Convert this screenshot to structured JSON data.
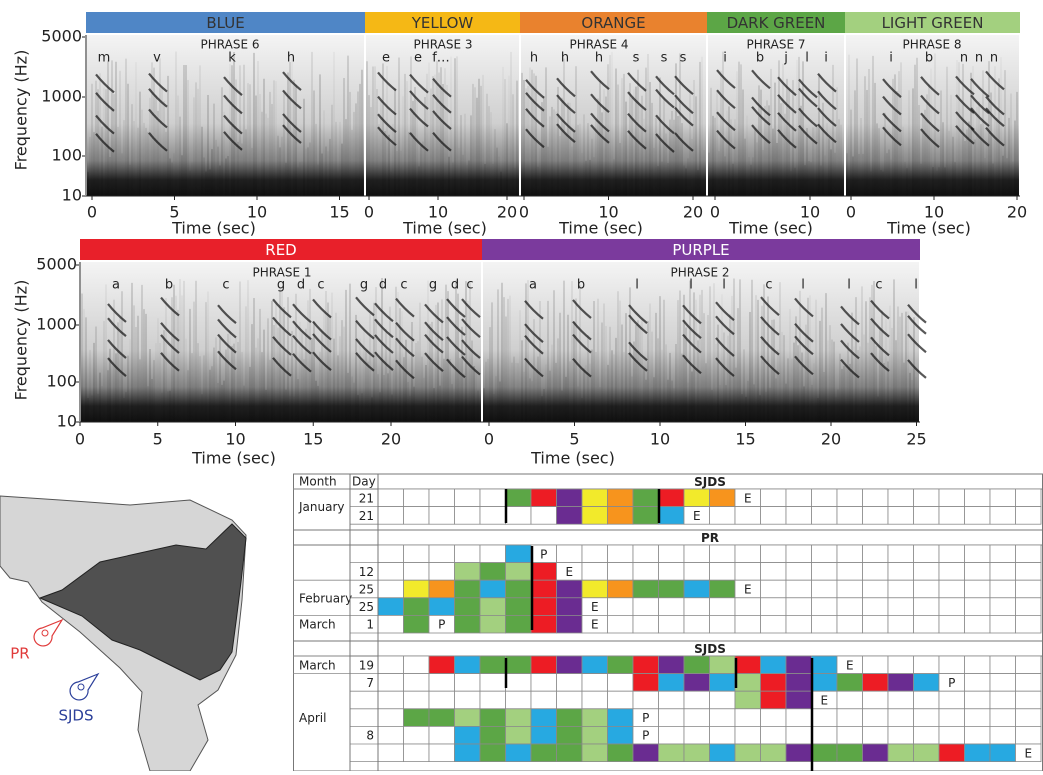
{
  "spectrograms": [
    {
      "ylabel": "Frequency (Hz)",
      "yticks": [
        5000,
        1000,
        100,
        10
      ],
      "panels": [
        {
          "header": "BLUE",
          "color": "#4f86c6",
          "text_color": "#333333",
          "phrase": "PHRASE 6",
          "letters": [
            "m",
            "v",
            "k",
            "h"
          ],
          "xticks": [
            0,
            5,
            10,
            15
          ],
          "xlabel": "Time (sec)"
        },
        {
          "header": "YELLOW",
          "color": "#f5b815",
          "text_color": "#333333",
          "phrase": "PHRASE 3",
          "letters": [
            "e",
            "e",
            "f…"
          ],
          "xticks": [
            0,
            10,
            20
          ],
          "xlabel": "Time (sec)"
        },
        {
          "header": "ORANGE",
          "color": "#e9822e",
          "text_color": "#333333",
          "phrase": "PHRASE 4",
          "letters": [
            "h",
            "h",
            "h",
            "s",
            "s",
            "s"
          ],
          "xticks": [
            0,
            10,
            20
          ],
          "xlabel": "Time (sec)"
        },
        {
          "header": "DARK GREEN",
          "color": "#5ca646",
          "text_color": "#333333",
          "phrase": "PHRASE 7",
          "letters": [
            "i",
            "b",
            "j",
            "l",
            "i"
          ],
          "xticks": [
            0,
            10
          ],
          "xlabel": "Time (sec)"
        },
        {
          "header": "LIGHT GREEN",
          "color": "#a3d07f",
          "text_color": "#333333",
          "phrase": "PHRASE 8",
          "letters": [
            "i",
            "b",
            "n",
            "n",
            "n"
          ],
          "xticks": [
            0,
            10,
            20
          ],
          "xlabel": "Time (sec)"
        }
      ]
    },
    {
      "ylabel": "Frequency (Hz)",
      "yticks": [
        5000,
        1000,
        100,
        10
      ],
      "panels": [
        {
          "header": "RED",
          "color": "#e8202a",
          "text_color": "#ffffff",
          "phrase": "PHRASE 1",
          "letters": [
            "a",
            "b",
            "c",
            "g",
            "d",
            "c",
            "g",
            "d",
            "c",
            "g",
            "d",
            "c"
          ],
          "xticks": [
            0,
            5,
            10,
            15,
            20
          ],
          "xlabel": "Time (sec)"
        },
        {
          "header": "PURPLE",
          "color": "#7b3a9d",
          "text_color": "#ffffff",
          "phrase": "PHRASE 2",
          "letters": [
            "a",
            "b",
            "l",
            "l",
            "l",
            "c",
            "l",
            "l",
            "c",
            "l"
          ],
          "xticks": [
            0,
            5,
            10,
            15,
            20,
            25
          ],
          "xlabel": "Time (sec)"
        }
      ]
    }
  ],
  "table": {
    "header": {
      "month": "Month",
      "day": "Day"
    },
    "sections": [
      {
        "title": "SJDS",
        "rows": [
          {
            "month": "January",
            "day": "21",
            "cells": [
              null,
              null,
              null,
              null,
              null,
              "#5ca646",
              "#ed1c24",
              "#6a2c91",
              "#f2ea2b",
              "#f7941d",
              "#5ca646",
              "#ed1c24",
              "#f2ea2b",
              "#f7941d",
              "E",
              null,
              null,
              null,
              null,
              null,
              null,
              null,
              null,
              null,
              null,
              null
            ]
          },
          {
            "day": "21",
            "cells": [
              null,
              null,
              null,
              null,
              null,
              null,
              null,
              "#6a2c91",
              "#f2ea2b",
              "#f7941d",
              "#5ca646",
              "#27a9e1",
              "E",
              null,
              null,
              null,
              null,
              null,
              null,
              null,
              null,
              null,
              null,
              null,
              null,
              null
            ]
          }
        ]
      },
      {
        "title": "PR",
        "rows": [
          {
            "cells": [
              null,
              null,
              null,
              null,
              null,
              "#27a9e1",
              "P",
              null,
              null,
              null,
              null,
              null,
              null,
              null,
              null,
              null,
              null,
              null,
              null,
              null,
              null,
              null,
              null,
              null,
              null,
              null
            ]
          },
          {
            "day": "12",
            "cells": [
              null,
              null,
              null,
              "#a3d07f",
              "#5ca646",
              "#a3d07f",
              "#ed1c24",
              "E",
              null,
              null,
              null,
              null,
              null,
              null,
              null,
              null,
              null,
              null,
              null,
              null,
              null,
              null,
              null,
              null,
              null,
              null
            ]
          },
          {
            "month": "February",
            "day": "25",
            "cells": [
              null,
              "#f2ea2b",
              "#f7941d",
              "#5ca646",
              "#27a9e1",
              "#5ca646",
              "#ed1c24",
              "#6a2c91",
              "#f2ea2b",
              "#f7941d",
              "#5ca646",
              "#5ca646",
              "#27a9e1",
              "#5ca646",
              "E",
              null,
              null,
              null,
              null,
              null,
              null,
              null,
              null,
              null,
              null,
              null
            ]
          },
          {
            "day": "25",
            "cells": [
              "#27a9e1",
              "#5ca646",
              "#27a9e1",
              "#5ca646",
              "#a3d07f",
              "#5ca646",
              "#ed1c24",
              "#6a2c91",
              "E",
              null,
              null,
              null,
              null,
              null,
              null,
              null,
              null,
              null,
              null,
              null,
              null,
              null,
              null,
              null,
              null,
              null
            ]
          },
          {
            "month": "March",
            "day": "1",
            "cells": [
              null,
              "#5ca646",
              "P",
              "#5ca646",
              "#a3d07f",
              "#5ca646",
              "#ed1c24",
              "#6a2c91",
              "E",
              null,
              null,
              null,
              null,
              null,
              null,
              null,
              null,
              null,
              null,
              null,
              null,
              null,
              null,
              null,
              null,
              null
            ]
          }
        ]
      },
      {
        "title": "SJDS",
        "rows": [
          {
            "month": "March",
            "day": "19",
            "cells": [
              null,
              null,
              "#ed1c24",
              "#27a9e1",
              "#5ca646",
              "#5ca646",
              "#ed1c24",
              "#6a2c91",
              "#27a9e1",
              "#5ca646",
              "#ed1c24",
              "#6a2c91",
              "#5ca646",
              "#a3d07f",
              "#ed1c24",
              "#27a9e1",
              "#6a2c91",
              "#27a9e1",
              "E",
              null,
              null,
              null,
              null,
              null,
              null,
              null
            ]
          },
          {
            "month": "April",
            "day": "7",
            "cells": [
              null,
              null,
              null,
              null,
              null,
              null,
              null,
              null,
              null,
              null,
              "#ed1c24",
              "#27a9e1",
              "#6a2c91",
              "#27a9e1",
              "#a3d07f",
              "#ed1c24",
              "#6a2c91",
              "#27a9e1",
              "#5ca646",
              "#ed1c24",
              "#6a2c91",
              "#27a9e1",
              "P",
              null,
              null,
              null
            ]
          },
          {
            "cells": [
              null,
              null,
              null,
              null,
              null,
              null,
              null,
              null,
              null,
              null,
              null,
              null,
              null,
              null,
              "#a3d07f",
              "#ed1c24",
              "#6a2c91",
              "E",
              null,
              null,
              null,
              null,
              null,
              null,
              null,
              null
            ]
          },
          {
            "cells": [
              null,
              "#5ca646",
              "#5ca646",
              "#a3d07f",
              "#5ca646",
              "#a3d07f",
              "#27a9e1",
              "#5ca646",
              "#a3d07f",
              "#27a9e1",
              "P",
              null,
              null,
              null,
              null,
              null,
              null,
              null,
              null,
              null,
              null,
              null,
              null,
              null,
              null,
              null
            ]
          },
          {
            "day": "8",
            "cells": [
              null,
              null,
              null,
              "#27a9e1",
              "#5ca646",
              "#a3d07f",
              "#27a9e1",
              "#5ca646",
              "#a3d07f",
              "#27a9e1",
              "P",
              null,
              null,
              null,
              null,
              null,
              null,
              null,
              null,
              null,
              null,
              null,
              null,
              null,
              null,
              null
            ]
          },
          {
            "cells": [
              null,
              null,
              null,
              "#27a9e1",
              "#5ca646",
              "#27a9e1",
              "#5ca646",
              "#5ca646",
              "#a3d07f",
              "#5ca646",
              "#6a2c91",
              "#a3d07f",
              "#a3d07f",
              "#27a9e1",
              "#a3d07f",
              "#a3d07f",
              "#6a2c91",
              "#5ca646",
              "#5ca646",
              "#6a2c91",
              "#a3d07f",
              "#a3d07f",
              "#ed1c24",
              "#27a9e1",
              "#27a9e1",
              "E"
            ]
          }
        ]
      }
    ]
  },
  "map": {
    "sites": [
      {
        "label": "PR",
        "color": "#e03a3a"
      },
      {
        "label": "SJDS",
        "color": "#2b3f9a"
      }
    ]
  }
}
